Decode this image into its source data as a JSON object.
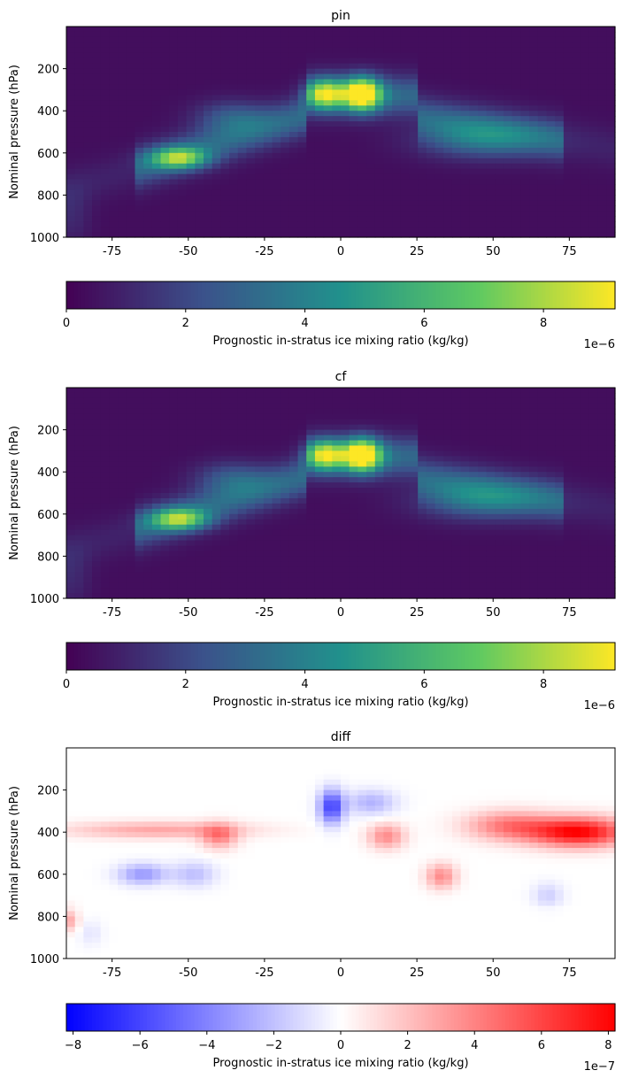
{
  "chart_data": [
    {
      "type": "heatmap",
      "title": "pin",
      "ylabel": "Nominal pressure (hPa)",
      "xlabel": "",
      "xlim": [
        -90,
        90
      ],
      "ylim": [
        1000,
        0
      ],
      "xticks": [
        "-75",
        "-50",
        "-25",
        "0",
        "25",
        "50",
        "75"
      ],
      "yticks": [
        "200",
        "400",
        "600",
        "800",
        "1000"
      ],
      "colormap": "viridis",
      "colorbar": {
        "label": "Prognostic in-stratus ice mixing ratio (kg/kg)",
        "range": [
          0,
          9.2e-06
        ],
        "ticks": [
          "0",
          "2",
          "4",
          "6",
          "8"
        ],
        "offset": "1e−6",
        "colors": [
          "#440154",
          "#3b528b",
          "#21918c",
          "#5ec962",
          "#fde725"
        ]
      },
      "features": [
        {
          "lat": 7,
          "p": 320,
          "value": 9.2e-06
        },
        {
          "lat": -5,
          "p": 320,
          "value": 7e-06
        },
        {
          "lat": -53,
          "p": 620,
          "value": 6.5e-06
        },
        {
          "lat": 42,
          "p": 520,
          "value": 4e-06
        },
        {
          "lat": -35,
          "p": 420,
          "value": 4e-06
        }
      ]
    },
    {
      "type": "heatmap",
      "title": "cf",
      "ylabel": "Nominal pressure (hPa)",
      "xlabel": "",
      "xlim": [
        -90,
        90
      ],
      "ylim": [
        1000,
        0
      ],
      "xticks": [
        "-75",
        "-50",
        "-25",
        "0",
        "25",
        "50",
        "75"
      ],
      "yticks": [
        "200",
        "400",
        "600",
        "800",
        "1000"
      ],
      "colormap": "viridis",
      "colorbar": {
        "label": "Prognostic in-stratus ice mixing ratio (kg/kg)",
        "range": [
          0,
          9.2e-06
        ],
        "ticks": [
          "0",
          "2",
          "4",
          "6",
          "8"
        ],
        "offset": "1e−6",
        "colors": [
          "#440154",
          "#3b528b",
          "#21918c",
          "#5ec962",
          "#fde725"
        ]
      },
      "features": [
        {
          "lat": 7,
          "p": 320,
          "value": 9e-06
        },
        {
          "lat": -5,
          "p": 320,
          "value": 7e-06
        },
        {
          "lat": -53,
          "p": 620,
          "value": 7e-06
        },
        {
          "lat": 42,
          "p": 520,
          "value": 3.8e-06
        },
        {
          "lat": -35,
          "p": 420,
          "value": 4e-06
        }
      ]
    },
    {
      "type": "heatmap",
      "title": "diff",
      "ylabel": "Nominal pressure (hPa)",
      "xlabel": "",
      "xlim": [
        -90,
        90
      ],
      "ylim": [
        1000,
        0
      ],
      "xticks": [
        "-75",
        "-50",
        "-25",
        "0",
        "25",
        "50",
        "75"
      ],
      "yticks": [
        "200",
        "400",
        "600",
        "800",
        "1000"
      ],
      "colormap": "bwr",
      "colorbar": {
        "label": "Prognostic in-stratus ice mixing ratio (kg/kg)",
        "range": [
          -8.2e-07,
          8.2e-07
        ],
        "ticks": [
          "−8",
          "−6",
          "−4",
          "−2",
          "0",
          "2",
          "4",
          "6",
          "8"
        ],
        "offset": "1e−7",
        "colors": [
          "#0000ff",
          "#ffffff",
          "#ff0000"
        ]
      },
      "features": [
        {
          "lat": 75,
          "p": 400,
          "value": 8.2e-07
        },
        {
          "lat": 50,
          "p": 370,
          "value": 4e-07
        },
        {
          "lat": -3,
          "p": 280,
          "value": -6e-07
        },
        {
          "lat": -65,
          "p": 600,
          "value": -3.5e-07
        },
        {
          "lat": -89,
          "p": 820,
          "value": 6e-07
        },
        {
          "lat": 33,
          "p": 610,
          "value": 5e-07
        },
        {
          "lat": 15,
          "p": 420,
          "value": 4e-07
        }
      ]
    }
  ]
}
